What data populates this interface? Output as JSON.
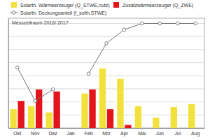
{
  "chart_data": {
    "type": "bar",
    "categories": [
      "Okt",
      "Nov",
      "Dez",
      "Jan",
      "Feb",
      "Mrz",
      "Apr",
      "Mai",
      "Jun",
      "Jul",
      "Aug"
    ],
    "series": [
      {
        "name": "Solarth. Wärmeerzeuger (Q_STWE,nutz)",
        "type": "bar",
        "color": "#f2e13c",
        "values": [
          18,
          21,
          15,
          null,
          33,
          57,
          47,
          21,
          10,
          20,
          23
        ]
      },
      {
        "name": "Zusatzwärmeerzeuger (Q_ZWE)",
        "type": "bar",
        "color": "#e3141b",
        "values": [
          26,
          37,
          35,
          null,
          37,
          18,
          3,
          0,
          0,
          0,
          0
        ]
      },
      {
        "name": "Solarth. Deckungsanteil (f_solth,STWE)",
        "type": "line",
        "color": "#707070",
        "marker": "circle",
        "values": [
          58,
          26,
          37,
          null,
          52,
          81,
          94,
          100,
          100,
          100,
          100
        ]
      }
    ],
    "annotations": [
      "Messzeitraum 2016/ 2017"
    ],
    "ylim": [
      0,
      105
    ],
    "yticks": [
      0,
      12.5,
      25,
      37.5,
      50,
      62.5,
      75,
      87.5,
      100
    ],
    "grid": true,
    "legend": "top",
    "tick_labels": "x"
  }
}
